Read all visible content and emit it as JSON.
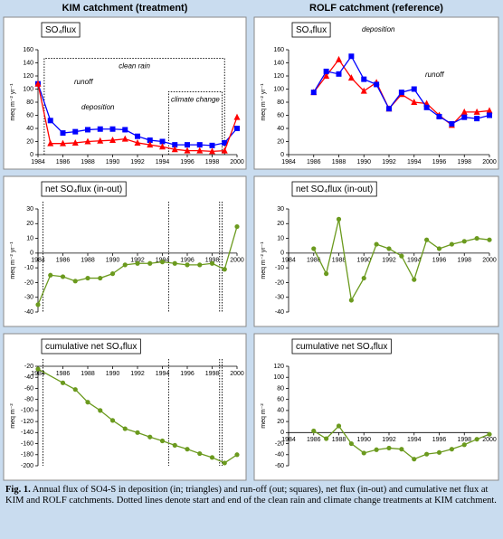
{
  "headers": [
    "KIM catchment (treatment)",
    "ROLF catchment (reference)"
  ],
  "chart_data": [
    {
      "type": "line",
      "title": "SO₄flux",
      "ylabel": "meq m⁻² yr⁻¹",
      "x": [
        1984,
        1985,
        1986,
        1987,
        1988,
        1989,
        1990,
        1991,
        1992,
        1993,
        1994,
        1995,
        1996,
        1997,
        1998,
        1999,
        2000
      ],
      "series": [
        {
          "name": "runoff",
          "color": "#0000ff",
          "marker": "square",
          "values": [
            108,
            52,
            33,
            35,
            38,
            39,
            39,
            38,
            28,
            22,
            20,
            15,
            15,
            15,
            14,
            18,
            40
          ]
        },
        {
          "name": "deposition",
          "color": "#ff0000",
          "marker": "triangle",
          "values": [
            108,
            17,
            17,
            18,
            20,
            21,
            22,
            24,
            18,
            15,
            12,
            8,
            6,
            6,
            5,
            6,
            57
          ]
        }
      ],
      "periods": [
        {
          "label": "clean rain",
          "start": 1984.5,
          "end": 1999,
          "top": 147
        },
        {
          "label": "climate change",
          "start": 1994.5,
          "end": 1998.8,
          "top": 96
        }
      ],
      "xlim": [
        1984,
        2000
      ],
      "xticks": [
        1984,
        1986,
        1988,
        1990,
        1992,
        1994,
        1996,
        1998,
        2000
      ],
      "ylim": [
        0,
        160
      ],
      "yticks": [
        0,
        20,
        40,
        60,
        80,
        100,
        120,
        140,
        160
      ]
    },
    {
      "type": "line",
      "title": "net SO₄flux (in-out)",
      "ylabel": "meq m⁻² yr⁻¹",
      "x": [
        1984,
        1985,
        1986,
        1987,
        1988,
        1989,
        1990,
        1991,
        1992,
        1993,
        1994,
        1995,
        1996,
        1997,
        1998,
        1999,
        2000
      ],
      "values": [
        -35,
        -15,
        -16,
        -19,
        -17,
        -17,
        -14,
        -8,
        -7,
        -7,
        -6,
        -7,
        -8,
        -8,
        -7,
        -11,
        18
      ],
      "color": "#6b9a1e",
      "marker": "circle",
      "period_lines": [
        1984.4,
        1994.5,
        1998.6,
        1998.8
      ],
      "xlim": [
        1984,
        2000
      ],
      "xticks": [
        1984,
        1986,
        1988,
        1990,
        1992,
        1994,
        1996,
        1998,
        2000
      ],
      "ylim": [
        -40,
        30
      ],
      "yticks": [
        -40,
        -30,
        -20,
        -10,
        0,
        10,
        20,
        30
      ]
    },
    {
      "type": "line",
      "title": "cumulative net SO₄flux",
      "ylabel": "meq m⁻²",
      "x": [
        1984,
        1986,
        1987,
        1988,
        1989,
        1990,
        1991,
        1992,
        1993,
        1994,
        1995,
        1996,
        1997,
        1998,
        1999,
        2000
      ],
      "values": [
        -25,
        -50,
        -62,
        -85,
        -100,
        -118,
        -133,
        -140,
        -148,
        -155,
        -163,
        -170,
        -178,
        -185,
        -195,
        -180
      ],
      "color": "#6b9a1e",
      "marker": "circle",
      "period_lines": [
        1984.4,
        1994.5,
        1998.6,
        1998.8
      ],
      "xlim": [
        1984,
        2000
      ],
      "xticks": [
        1984,
        1986,
        1988,
        1990,
        1992,
        1994,
        1996,
        1998,
        2000
      ],
      "ylim": [
        -200,
        -20
      ],
      "yticks": [
        -200,
        -180,
        -160,
        -140,
        -120,
        -100,
        -80,
        -60,
        -40,
        -20
      ]
    },
    {
      "type": "line",
      "title": "SO₄flux",
      "ylabel": "meq m⁻² yr⁻¹",
      "x": [
        1986,
        1987,
        1988,
        1989,
        1990,
        1991,
        1992,
        1993,
        1994,
        1995,
        1996,
        1997,
        1998,
        1999,
        2000
      ],
      "series": [
        {
          "name": "deposition",
          "color": "#ff0000",
          "marker": "triangle",
          "values": [
            95,
            120,
            145,
            117,
            97,
            110,
            70,
            92,
            80,
            78,
            60,
            45,
            65,
            65,
            67
          ]
        },
        {
          "name": "runoff",
          "color": "#0000ff",
          "marker": "square",
          "values": [
            95,
            127,
            123,
            150,
            115,
            107,
            70,
            95,
            100,
            72,
            58,
            47,
            57,
            55,
            60
          ]
        }
      ],
      "xlim": [
        1984,
        2000
      ],
      "xticks": [
        1984,
        1986,
        1988,
        1990,
        1992,
        1994,
        1996,
        1998,
        2000
      ],
      "ylim": [
        0,
        160
      ],
      "yticks": [
        0,
        20,
        40,
        60,
        80,
        100,
        120,
        140,
        160
      ]
    },
    {
      "type": "line",
      "title": "net SO₄flux (in-out)",
      "ylabel": "meq m⁻² yr⁻¹",
      "x": [
        1986,
        1987,
        1988,
        1989,
        1990,
        1991,
        1992,
        1993,
        1994,
        1995,
        1996,
        1997,
        1998,
        1999,
        2000
      ],
      "values": [
        3,
        -14,
        23,
        -32,
        -17,
        6,
        3,
        -2,
        -18,
        9,
        3,
        6,
        8,
        10,
        9
      ],
      "color": "#6b9a1e",
      "marker": "circle",
      "xlim": [
        1984,
        2000
      ],
      "xticks": [
        1984,
        1986,
        1988,
        1990,
        1992,
        1994,
        1996,
        1998,
        2000
      ],
      "ylim": [
        -40,
        30
      ],
      "yticks": [
        -40,
        -30,
        -20,
        -10,
        0,
        10,
        20,
        30
      ]
    },
    {
      "type": "line",
      "title": "cumulative net SO₄flux",
      "ylabel": "meq m⁻²",
      "x": [
        1986,
        1987,
        1988,
        1989,
        1990,
        1991,
        1992,
        1993,
        1994,
        1995,
        1996,
        1997,
        1998,
        1999,
        2000
      ],
      "values": [
        3,
        -11,
        12,
        -20,
        -37,
        -31,
        -28,
        -30,
        -48,
        -39,
        -36,
        -30,
        -22,
        -12,
        -3
      ],
      "color": "#6b9a1e",
      "marker": "circle",
      "xlim": [
        1984,
        2000
      ],
      "xticks": [
        1984,
        1986,
        1988,
        1990,
        1992,
        1994,
        1996,
        1998,
        2000
      ],
      "ylim": [
        -60,
        120
      ],
      "yticks": [
        -60,
        -40,
        -20,
        0,
        20,
        40,
        60,
        80,
        100,
        120
      ]
    }
  ],
  "caption": {
    "label": "Fig. 1.",
    "text": "Annual flux of SO4-S in deposition (in; triangles) and run-off (out; squares), net flux (in-out) and cumulative net flux at KIM and ROLF catchments. Dotted lines denote start and end of the clean rain and climate change treatments at KIM catchment."
  }
}
